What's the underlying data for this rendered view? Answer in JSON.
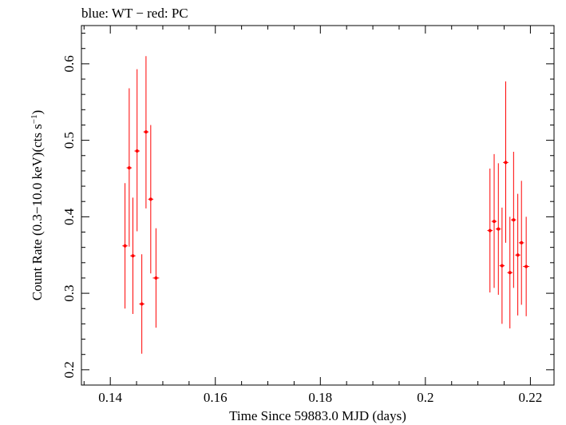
{
  "header": {
    "title": "blue: WT − red: PC"
  },
  "chart_data": {
    "type": "scatter",
    "title": "blue: WT − red: PC",
    "xlabel": "Time Since 59883.0 MJD (days)",
    "ylabel_main": "Count Rate (0.3−10.0 keV)(cts s",
    "ylabel_sup": "−1",
    "ylabel_close": ")",
    "xlim": [
      0.1345,
      0.2245
    ],
    "ylim": [
      0.18,
      0.65
    ],
    "xticks": [
      0.14,
      0.16,
      0.18,
      0.2,
      0.22
    ],
    "xtick_labels": [
      "0.14",
      "0.16",
      "0.18",
      "0.2",
      "0.22"
    ],
    "yticks": [
      0.2,
      0.3,
      0.4,
      0.5,
      0.6
    ],
    "ytick_labels": [
      "0.2",
      "0.3",
      "0.4",
      "0.5",
      "0.6"
    ],
    "grid": false,
    "series": [
      {
        "name": "PC",
        "color": "#ff0000",
        "points": [
          {
            "x": 0.1428,
            "y": 0.362,
            "ylo": 0.28,
            "yhi": 0.444,
            "xerr": 0.0005
          },
          {
            "x": 0.1436,
            "y": 0.464,
            "ylo": 0.361,
            "yhi": 0.568,
            "xerr": 0.0005
          },
          {
            "x": 0.1443,
            "y": 0.349,
            "ylo": 0.273,
            "yhi": 0.425,
            "xerr": 0.0005
          },
          {
            "x": 0.1451,
            "y": 0.486,
            "ylo": 0.381,
            "yhi": 0.593,
            "xerr": 0.0005
          },
          {
            "x": 0.146,
            "y": 0.286,
            "ylo": 0.221,
            "yhi": 0.351,
            "xerr": 0.0005
          },
          {
            "x": 0.1468,
            "y": 0.511,
            "ylo": 0.411,
            "yhi": 0.61,
            "xerr": 0.0005
          },
          {
            "x": 0.1477,
            "y": 0.423,
            "ylo": 0.326,
            "yhi": 0.52,
            "xerr": 0.0005
          },
          {
            "x": 0.1487,
            "y": 0.32,
            "ylo": 0.255,
            "yhi": 0.385,
            "xerr": 0.0006
          },
          {
            "x": 0.2123,
            "y": 0.382,
            "ylo": 0.301,
            "yhi": 0.463,
            "xerr": 0.0005
          },
          {
            "x": 0.2131,
            "y": 0.394,
            "ylo": 0.307,
            "yhi": 0.482,
            "xerr": 0.0005
          },
          {
            "x": 0.2139,
            "y": 0.384,
            "ylo": 0.298,
            "yhi": 0.47,
            "xerr": 0.0005
          },
          {
            "x": 0.2146,
            "y": 0.336,
            "ylo": 0.26,
            "yhi": 0.412,
            "xerr": 0.0005
          },
          {
            "x": 0.2153,
            "y": 0.471,
            "ylo": 0.366,
            "yhi": 0.577,
            "xerr": 0.0005
          },
          {
            "x": 0.2161,
            "y": 0.327,
            "ylo": 0.254,
            "yhi": 0.4,
            "xerr": 0.0005
          },
          {
            "x": 0.2168,
            "y": 0.396,
            "ylo": 0.307,
            "yhi": 0.485,
            "xerr": 0.0005
          },
          {
            "x": 0.2176,
            "y": 0.35,
            "ylo": 0.271,
            "yhi": 0.43,
            "xerr": 0.0005
          },
          {
            "x": 0.2183,
            "y": 0.366,
            "ylo": 0.285,
            "yhi": 0.447,
            "xerr": 0.0005
          },
          {
            "x": 0.2192,
            "y": 0.335,
            "ylo": 0.27,
            "yhi": 0.4,
            "xerr": 0.0006
          }
        ]
      }
    ]
  }
}
